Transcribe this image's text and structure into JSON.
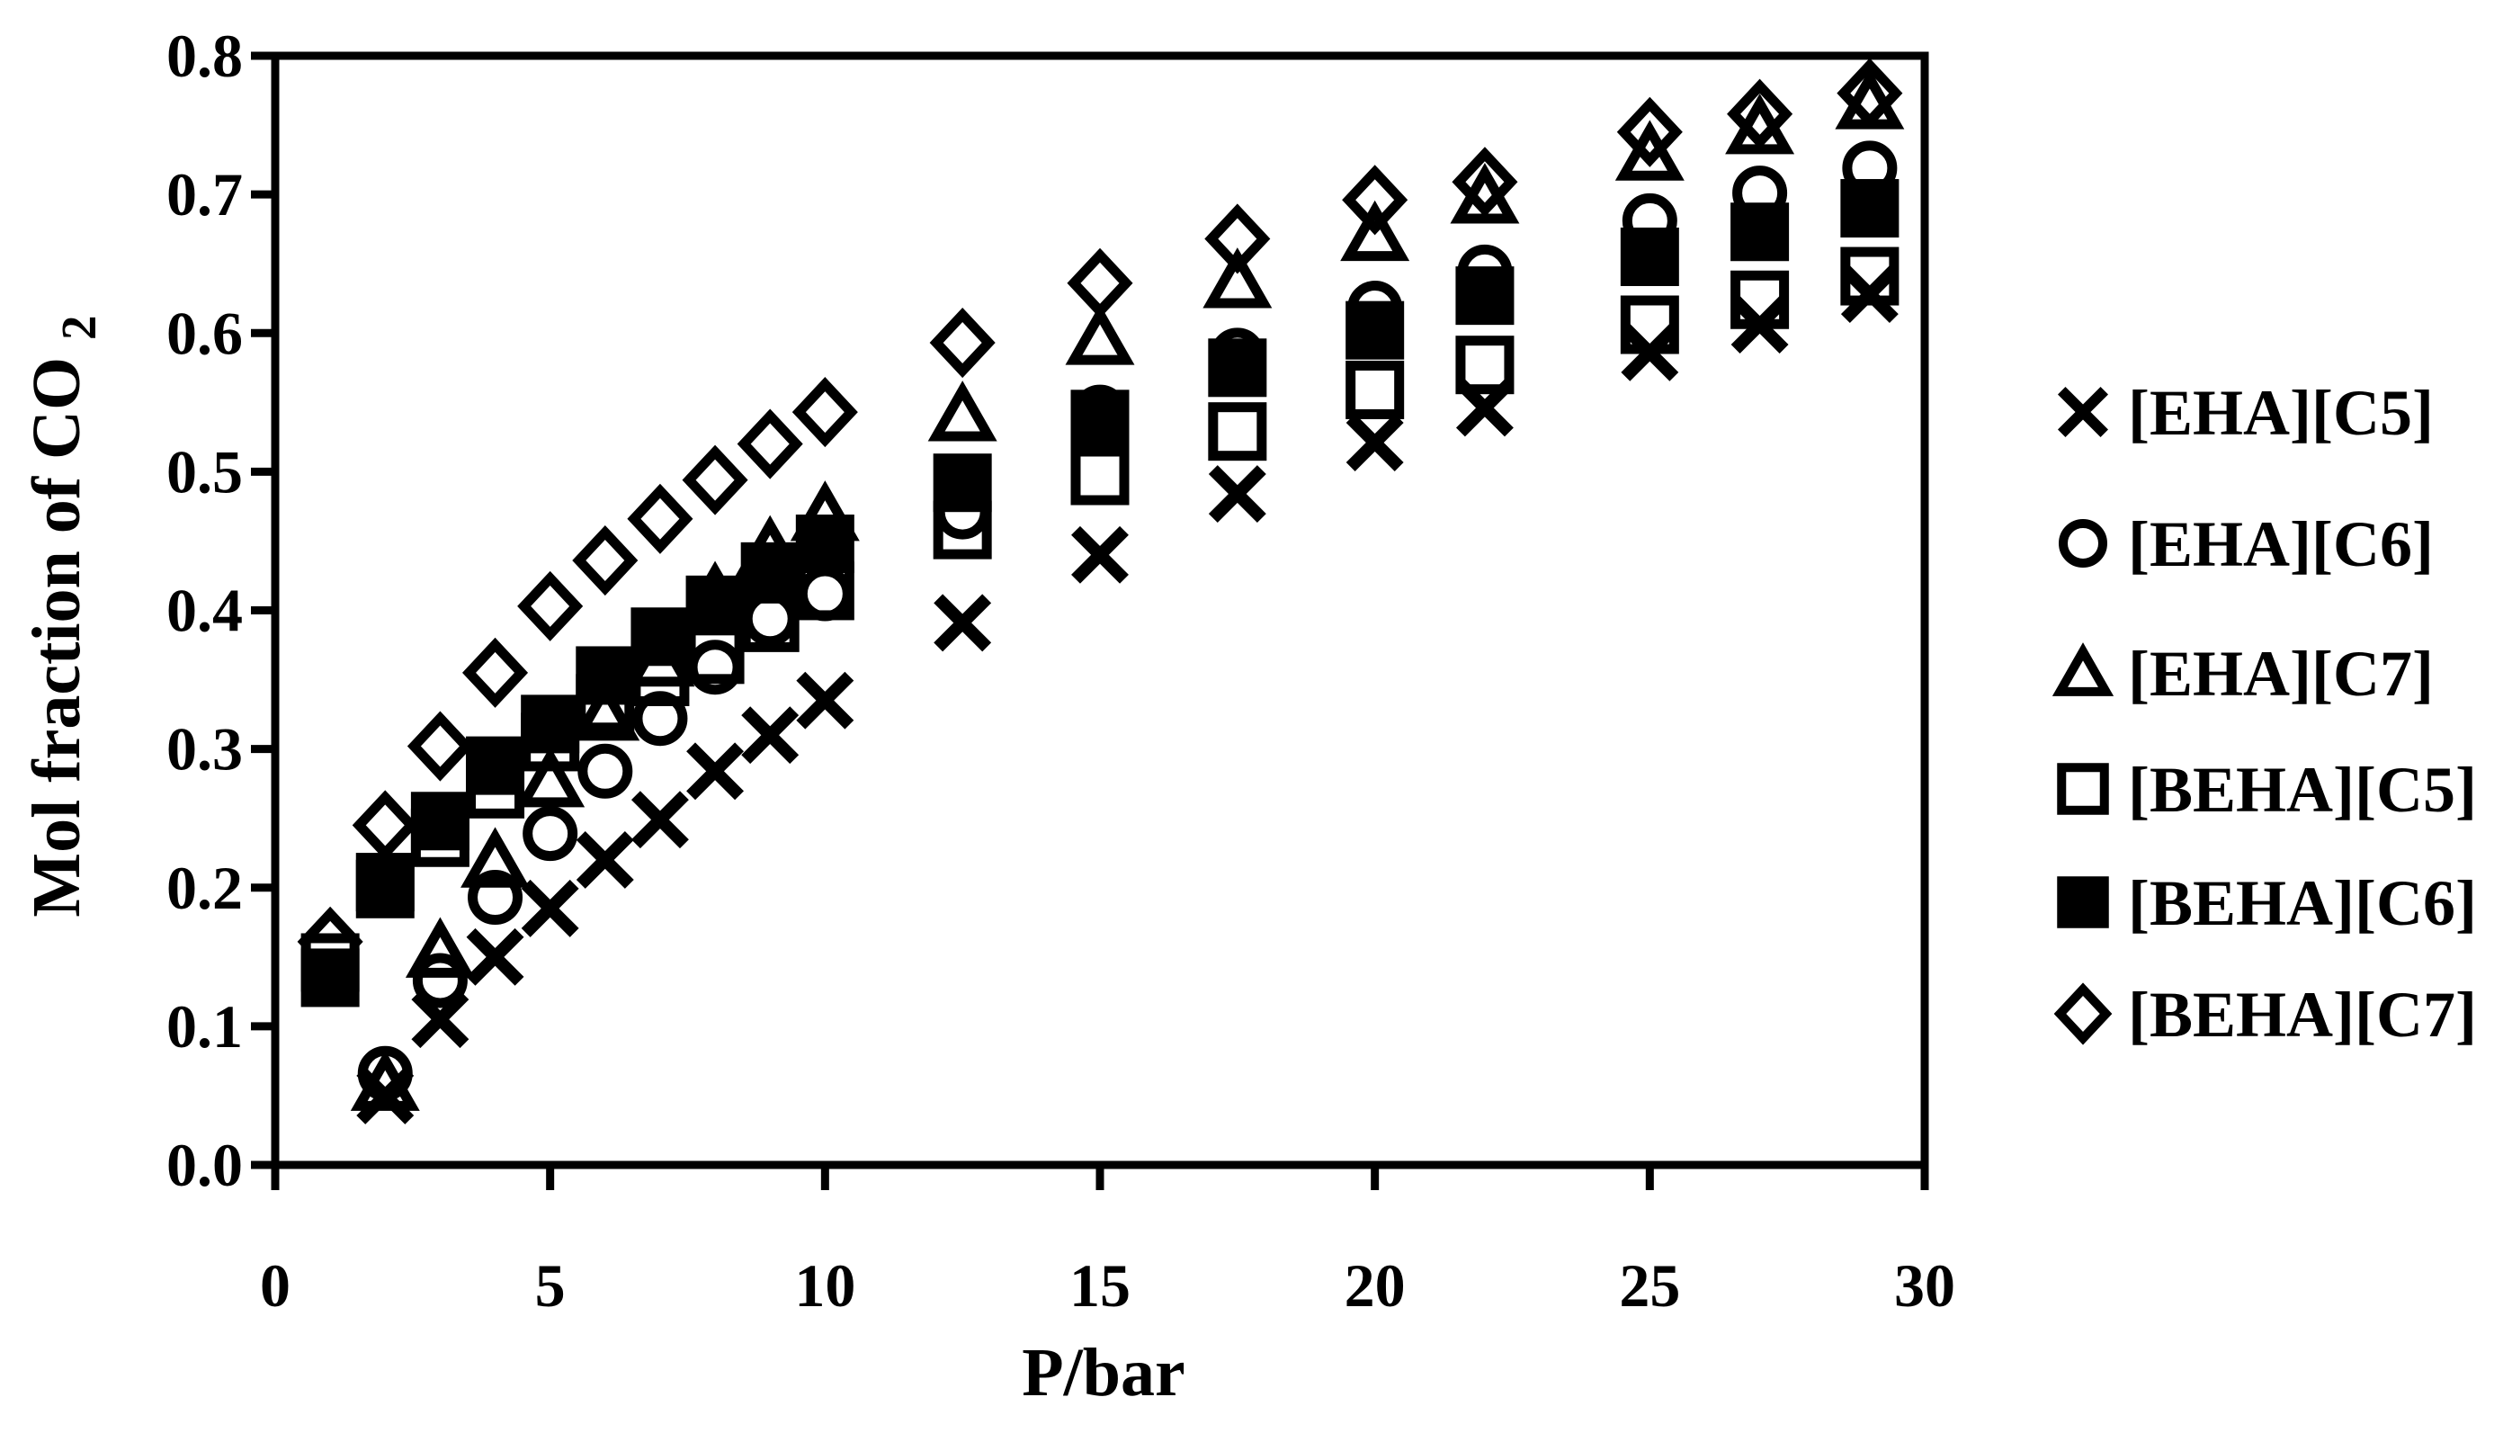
{
  "figure": {
    "background": "#ffffff",
    "ink_color": "#000000"
  },
  "chart_data": {
    "type": "scatter",
    "title": "",
    "xlabel": "P/bar",
    "ylabel": "Mol fraction of CO2",
    "ylabel_main": "Mol fraction of CO",
    "ylabel_sub": "2",
    "xlim": [
      0,
      30
    ],
    "ylim": [
      0.0,
      0.8
    ],
    "x_ticks": [
      0,
      5,
      10,
      15,
      20,
      25,
      30
    ],
    "x_tick_labels": [
      "0",
      "5",
      "10",
      "15",
      "20",
      "25",
      "30"
    ],
    "y_ticks": [
      0.0,
      0.1,
      0.2,
      0.3,
      0.4,
      0.5,
      0.6,
      0.7,
      0.8
    ],
    "y_tick_labels": [
      "0.0",
      "0.1",
      "0.2",
      "0.3",
      "0.4",
      "0.5",
      "0.6",
      "0.7",
      "0.8"
    ],
    "grid": false,
    "legend_position": "right-outside",
    "draw_order": [
      "[BEHA][C7]",
      "[BEHA][C5]",
      "[EHA][C7]",
      "[EHA][C6]",
      "[BEHA][C6]",
      "[EHA][C5]"
    ],
    "series": [
      {
        "name": "[EHA][C5]",
        "marker": "x",
        "fill": "none",
        "points": [
          [
            2,
            0.05
          ],
          [
            3,
            0.105
          ],
          [
            4,
            0.15
          ],
          [
            5,
            0.185
          ],
          [
            6,
            0.22
          ],
          [
            7,
            0.249
          ],
          [
            8,
            0.284
          ],
          [
            9,
            0.31
          ],
          [
            10,
            0.335
          ],
          [
            12.5,
            0.391
          ],
          [
            15,
            0.44
          ],
          [
            17.5,
            0.484
          ],
          [
            20,
            0.521
          ],
          [
            22,
            0.546
          ],
          [
            25,
            0.586
          ],
          [
            27,
            0.606
          ],
          [
            29,
            0.628
          ]
        ]
      },
      {
        "name": "[EHA][C6]",
        "marker": "circle",
        "fill": "none",
        "points": [
          [
            2,
            0.066
          ],
          [
            3,
            0.133
          ],
          [
            4,
            0.193
          ],
          [
            5,
            0.239
          ],
          [
            6,
            0.284
          ],
          [
            7,
            0.322
          ],
          [
            8,
            0.359
          ],
          [
            9,
            0.394
          ],
          [
            10,
            0.412
          ],
          [
            12.5,
            0.471
          ],
          [
            15,
            0.543
          ],
          [
            17.5,
            0.584
          ],
          [
            20,
            0.618
          ],
          [
            22,
            0.644
          ],
          [
            25,
            0.681
          ],
          [
            27,
            0.701
          ],
          [
            29,
            0.719
          ]
        ]
      },
      {
        "name": "[EHA][C7]",
        "marker": "triangle",
        "fill": "none",
        "points": [
          [
            2,
            0.058
          ],
          [
            3,
            0.154
          ],
          [
            4,
            0.219
          ],
          [
            5,
            0.277
          ],
          [
            6,
            0.325
          ],
          [
            7,
            0.364
          ],
          [
            8,
            0.411
          ],
          [
            9,
            0.444
          ],
          [
            10,
            0.469
          ],
          [
            12.5,
            0.541
          ],
          [
            15,
            0.596
          ],
          [
            17.5,
            0.637
          ],
          [
            20,
            0.671
          ],
          [
            22,
            0.698
          ],
          [
            25,
            0.729
          ],
          [
            27,
            0.748
          ],
          [
            29,
            0.766
          ]
        ]
      },
      {
        "name": "[BEHA][C5]",
        "marker": "square-open",
        "fill": "#ffffff",
        "points": [
          [
            1,
            0.146
          ],
          [
            2,
            0.204
          ],
          [
            3,
            0.236
          ],
          [
            4,
            0.271
          ],
          [
            5,
            0.305
          ],
          [
            6,
            0.333
          ],
          [
            7,
            0.352
          ],
          [
            8,
            0.368
          ],
          [
            9,
            0.391
          ],
          [
            10,
            0.414
          ],
          [
            12.5,
            0.458
          ],
          [
            15,
            0.497
          ],
          [
            17.5,
            0.529
          ],
          [
            20,
            0.559
          ],
          [
            22,
            0.577
          ],
          [
            25,
            0.606
          ],
          [
            27,
            0.624
          ],
          [
            29,
            0.641
          ]
        ]
      },
      {
        "name": "[BEHA][C6]",
        "marker": "square-filled",
        "fill": "#000000",
        "points": [
          [
            1,
            0.135
          ],
          [
            2,
            0.199
          ],
          [
            3,
            0.248
          ],
          [
            4,
            0.288
          ],
          [
            5,
            0.318
          ],
          [
            6,
            0.353
          ],
          [
            7,
            0.381
          ],
          [
            8,
            0.404
          ],
          [
            9,
            0.428
          ],
          [
            10,
            0.448
          ],
          [
            12.5,
            0.492
          ],
          [
            15,
            0.538
          ],
          [
            17.5,
            0.575
          ],
          [
            20,
            0.602
          ],
          [
            22,
            0.627
          ],
          [
            25,
            0.655
          ],
          [
            27,
            0.673
          ],
          [
            29,
            0.69
          ]
        ]
      },
      {
        "name": "[BEHA][C7]",
        "marker": "diamond",
        "fill": "#ffffff",
        "points": [
          [
            1,
            0.161
          ],
          [
            2,
            0.245
          ],
          [
            3,
            0.302
          ],
          [
            4,
            0.355
          ],
          [
            5,
            0.403
          ],
          [
            6,
            0.436
          ],
          [
            7,
            0.466
          ],
          [
            8,
            0.494
          ],
          [
            9,
            0.52
          ],
          [
            10,
            0.543
          ],
          [
            12.5,
            0.593
          ],
          [
            15,
            0.636
          ],
          [
            17.5,
            0.668
          ],
          [
            20,
            0.696
          ],
          [
            22,
            0.709
          ],
          [
            25,
            0.745
          ],
          [
            27,
            0.758
          ],
          [
            29,
            0.773
          ]
        ]
      }
    ]
  },
  "legend": {
    "items": [
      {
        "label": "[EHA][C5]",
        "marker": "x"
      },
      {
        "label": "[EHA][C6]",
        "marker": "circle"
      },
      {
        "label": "[EHA][C7]",
        "marker": "triangle"
      },
      {
        "label": "[BEHA][C5]",
        "marker": "square-open"
      },
      {
        "label": "[BEHA][C6]",
        "marker": "square-filled"
      },
      {
        "label": "[BEHA][C7]",
        "marker": "diamond"
      }
    ]
  }
}
